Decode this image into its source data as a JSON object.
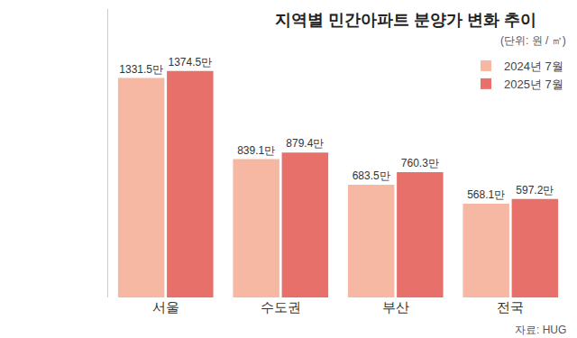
{
  "chart_data": {
    "type": "bar",
    "title": "지역별 민간아파트 분양가 변화 추이",
    "subtitle": "(단위: 원 / ㎡)",
    "annotations": [
      "자료: HUG"
    ],
    "categories": [
      "서울",
      "수도권",
      "부산",
      "전국"
    ],
    "series": [
      {
        "name": "2024년 7월",
        "color": "#f6b7a3",
        "values": [
          13315000,
          8391000,
          6835000,
          5681000
        ],
        "value_labels": [
          "1331.5만",
          "839.1만",
          "683.5만",
          "568.1만"
        ]
      },
      {
        "name": "2025년 7월",
        "color": "#e8706a",
        "values": [
          13745000,
          8794000,
          7603000,
          5972000
        ],
        "value_labels": [
          "1374.5만",
          "879.4만",
          "760.3만",
          "597.2만"
        ]
      }
    ],
    "ylim": [
      0,
      17500000
    ],
    "data_labels": true,
    "tick_labels": "x",
    "grid": false,
    "legend": "top-right"
  }
}
